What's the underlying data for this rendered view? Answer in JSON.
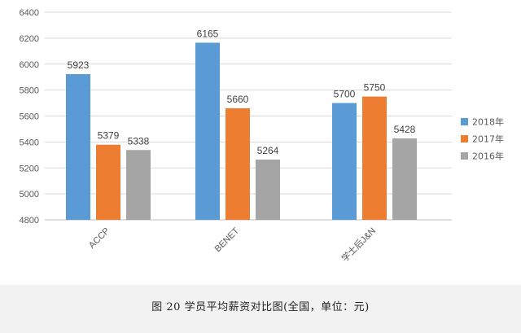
{
  "chart_data": {
    "type": "bar",
    "categories": [
      "ACCP",
      "BENET",
      "学士后J&N"
    ],
    "series": [
      {
        "name": "2018年",
        "color": "#5b9bd5",
        "values": [
          5923,
          6165,
          5700
        ]
      },
      {
        "name": "2017年",
        "color": "#ed7d31",
        "values": [
          5379,
          5660,
          5750
        ]
      },
      {
        "name": "2016年",
        "color": "#a5a5a5",
        "values": [
          5338,
          5264,
          5428
        ]
      }
    ],
    "ylim": [
      4800,
      6400
    ],
    "yticks": [
      "4800",
      "5000",
      "5200",
      "5400",
      "5600",
      "5800",
      "6000",
      "6200",
      "6400"
    ],
    "grid": true,
    "legend_position": "right",
    "data_labels": true
  },
  "caption": "图 20 学员平均薪资对比图(全国，单位：元)"
}
